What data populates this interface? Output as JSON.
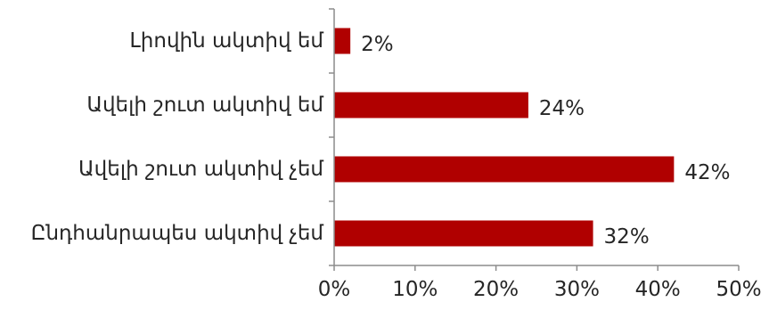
{
  "chart_data": {
    "type": "bar",
    "orientation": "horizontal",
    "categories": [
      "Լիովին ակտիվ եմ",
      "Ավելի շուտ ակտիվ եմ",
      "Ավելի շուտ ակտիվ չեմ",
      "Ընդհանրապես ակտիվ չեմ"
    ],
    "values": [
      2,
      24,
      42,
      32
    ],
    "value_labels": [
      "2%",
      "24%",
      "42%",
      "32%"
    ],
    "xlim": [
      0,
      50
    ],
    "x_ticks": [
      0,
      10,
      20,
      30,
      40,
      50
    ],
    "x_tick_labels": [
      "0%",
      "10%",
      "20%",
      "30%",
      "40%",
      "50%"
    ],
    "title": "",
    "xlabel": "",
    "ylabel": "",
    "grid": false,
    "bar_color": "#b00000"
  }
}
